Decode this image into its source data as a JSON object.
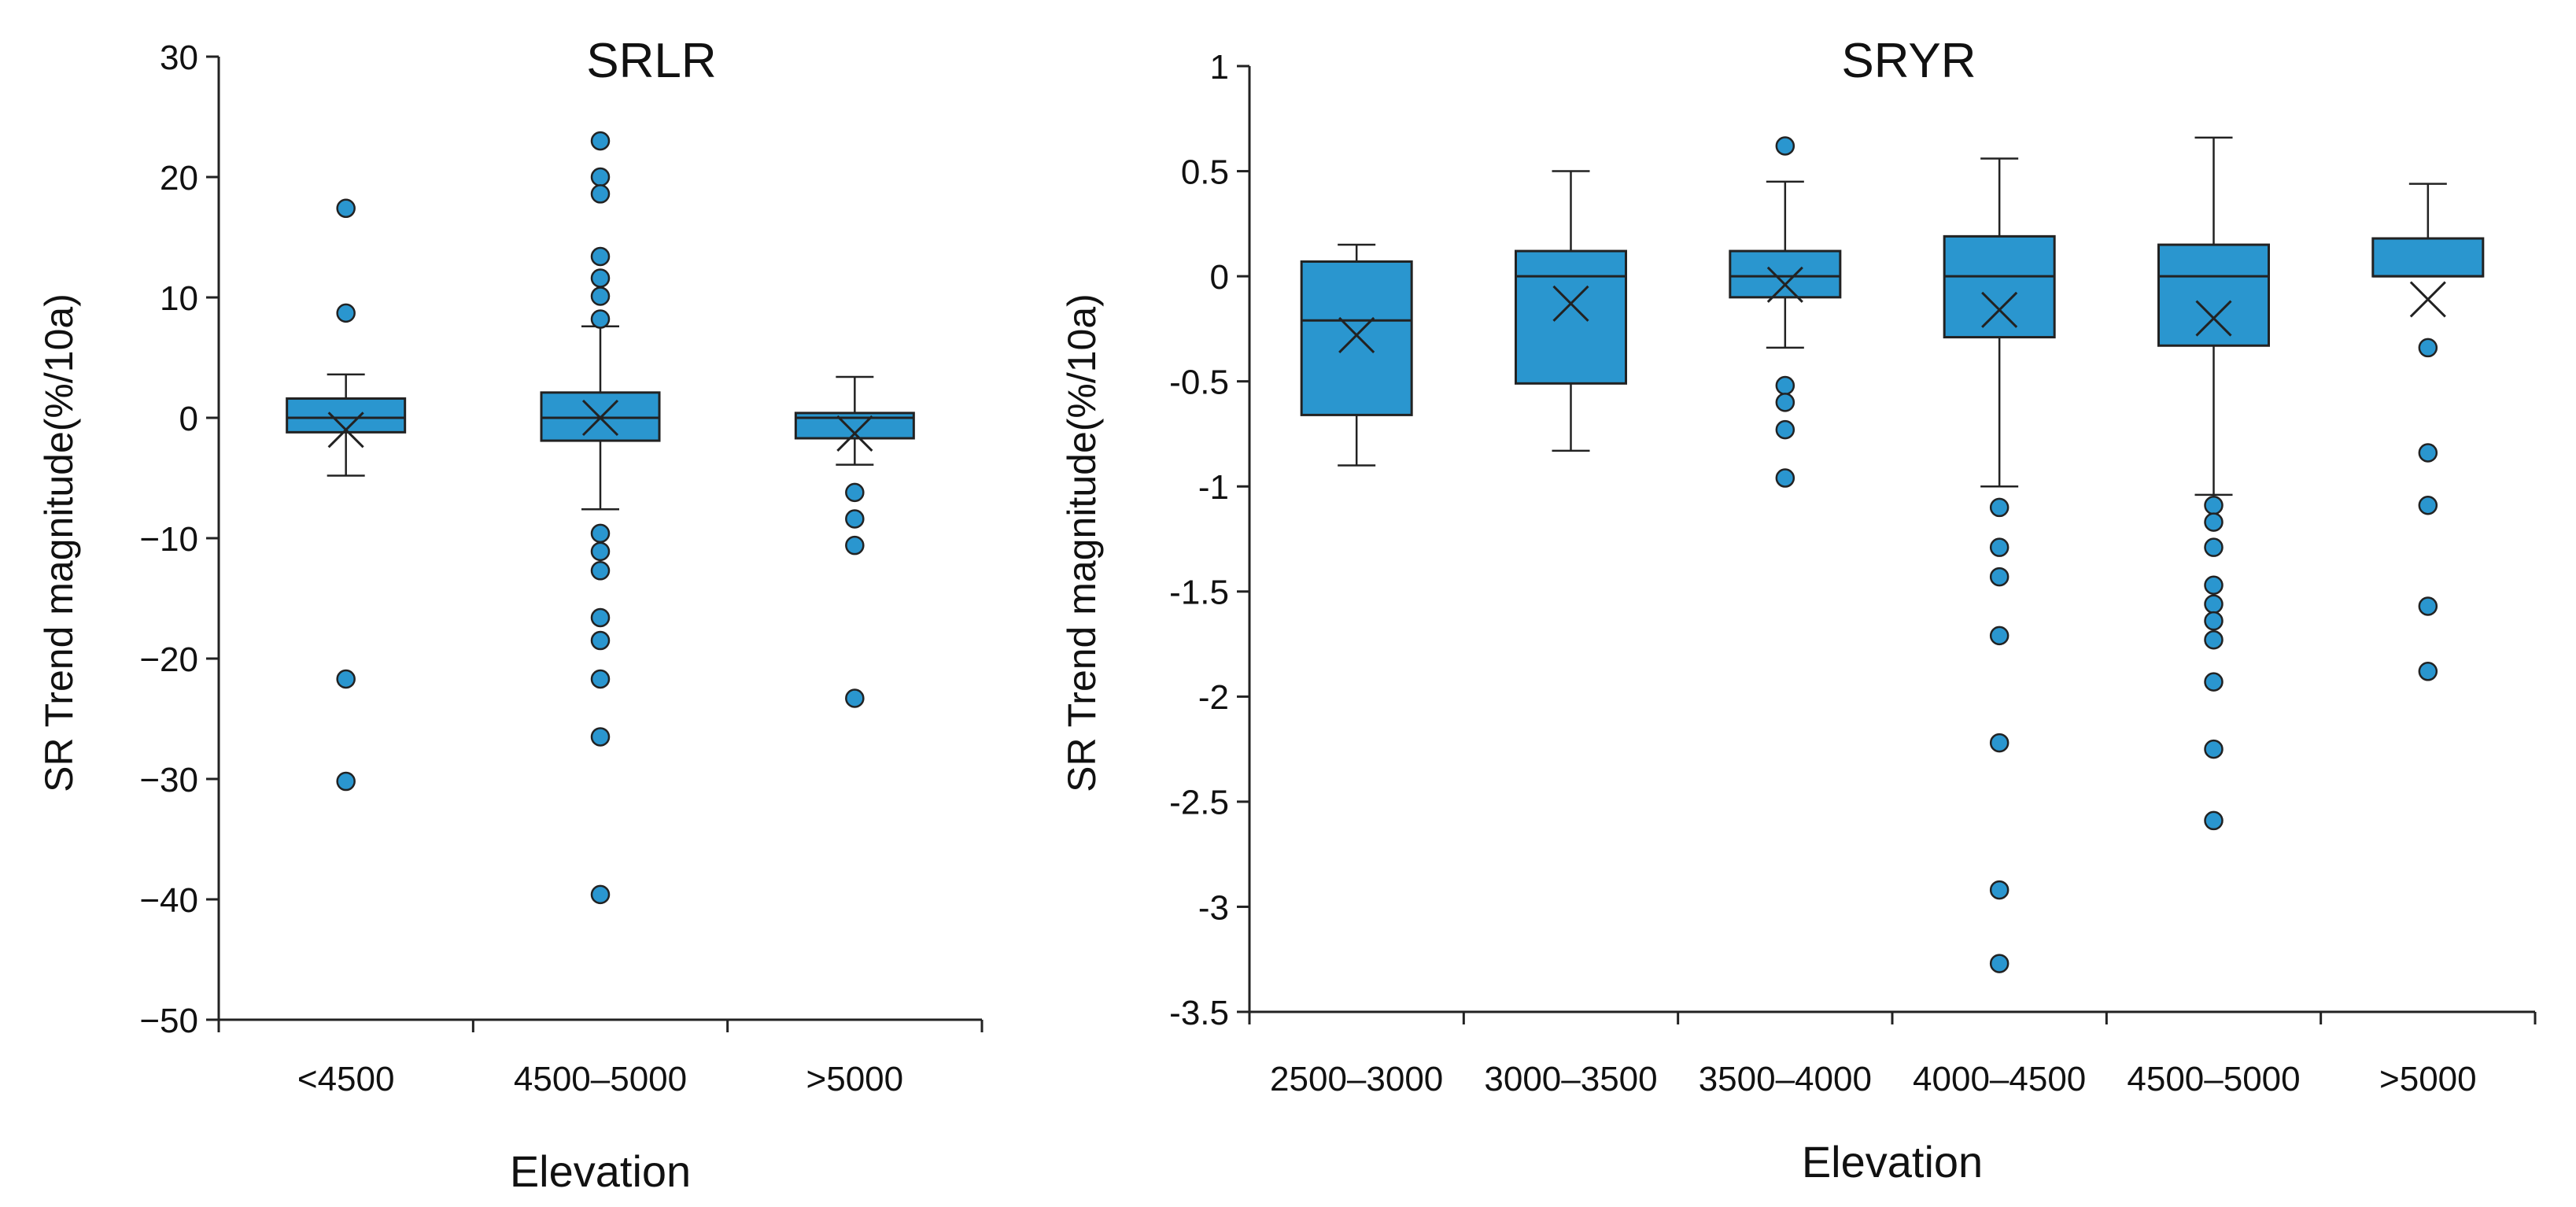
{
  "colors": {
    "box_fill": "#2a96cf",
    "outlier_fill": "#2a96cf",
    "line": "#222222"
  },
  "chart_data": [
    {
      "type": "box",
      "title": "SRLR",
      "xlabel": "Elevation",
      "ylabel": "SR Trend magnitude(%/10a)",
      "ylim": [
        -50,
        30
      ],
      "yticks": [
        30,
        20,
        10,
        0,
        -10,
        -20,
        -30,
        -40,
        -50
      ],
      "ytick_labels": [
        "30",
        "20",
        "10",
        "0",
        "−10",
        "−20",
        "−30",
        "−40",
        "−50"
      ],
      "categories": [
        "<4500",
        "4500–5000",
        ">5000"
      ],
      "grid": false,
      "legend": "none",
      "boxes": [
        {
          "q1": -1.2,
          "median": 0,
          "q3": 1.6,
          "whisker_low": -4.8,
          "whisker_high": 3.6,
          "mean": -1.0,
          "outliers": [
            17.4,
            8.7,
            -21.7,
            -30.2
          ]
        },
        {
          "q1": -1.9,
          "median": 0,
          "q3": 2.1,
          "whisker_low": -7.6,
          "whisker_high": 7.6,
          "mean": 0,
          "outliers": [
            23.0,
            20.0,
            18.6,
            13.4,
            11.6,
            10.1,
            8.2,
            -9.6,
            -11.1,
            -12.7,
            -16.6,
            -18.5,
            -21.7,
            -26.5,
            -39.6
          ]
        },
        {
          "q1": -1.7,
          "median": 0,
          "q3": 0.4,
          "whisker_low": -3.9,
          "whisker_high": 3.4,
          "mean": -1.3,
          "outliers": [
            -6.2,
            -8.4,
            -10.6,
            -23.3
          ]
        }
      ]
    },
    {
      "type": "box",
      "title": "SRYR",
      "xlabel": "Elevation",
      "ylabel": "SR Trend magnitude(%/10a)",
      "ylim": [
        -3.5,
        1
      ],
      "yticks": [
        1,
        0.5,
        0,
        -0.5,
        -1,
        -1.5,
        -2,
        -2.5,
        -3,
        -3.5
      ],
      "ytick_labels": [
        "1",
        "0.5",
        "0",
        "-0.5",
        "-1",
        "-1.5",
        "-2",
        "-2.5",
        "-3",
        "-3.5"
      ],
      "categories": [
        "2500–3000",
        "3000–3500",
        "3500–4000",
        "4000–4500",
        "4500–5000",
        ">5000"
      ],
      "grid": false,
      "legend": "none",
      "boxes": [
        {
          "q1": -0.66,
          "median": -0.21,
          "q3": 0.07,
          "whisker_low": -0.9,
          "whisker_high": 0.15,
          "mean": -0.28,
          "outliers": []
        },
        {
          "q1": -0.51,
          "median": 0,
          "q3": 0.12,
          "whisker_low": -0.83,
          "whisker_high": 0.5,
          "mean": -0.13,
          "outliers": []
        },
        {
          "q1": -0.1,
          "median": 0,
          "q3": 0.12,
          "whisker_low": -0.34,
          "whisker_high": 0.45,
          "mean": -0.04,
          "outliers": [
            0.62,
            -0.52,
            -0.6,
            -0.73,
            -0.96
          ]
        },
        {
          "q1": -0.29,
          "median": 0,
          "q3": 0.19,
          "whisker_low": -1.0,
          "whisker_high": 0.56,
          "mean": -0.16,
          "outliers": [
            -1.1,
            -1.29,
            -1.43,
            -1.71,
            -2.22,
            -2.92,
            -3.27
          ]
        },
        {
          "q1": -0.33,
          "median": 0,
          "q3": 0.15,
          "whisker_low": -1.04,
          "whisker_high": 0.66,
          "mean": -0.2,
          "outliers": [
            -1.09,
            -1.17,
            -1.29,
            -1.47,
            -1.56,
            -1.64,
            -1.73,
            -1.93,
            -2.25,
            -2.59
          ]
        },
        {
          "q1": 0,
          "median": 0,
          "q3": 0.18,
          "whisker_low": 0,
          "whisker_high": 0.44,
          "mean": -0.11,
          "outliers": [
            -0.34,
            -0.84,
            -1.09,
            -1.57,
            -1.88
          ]
        }
      ]
    }
  ]
}
